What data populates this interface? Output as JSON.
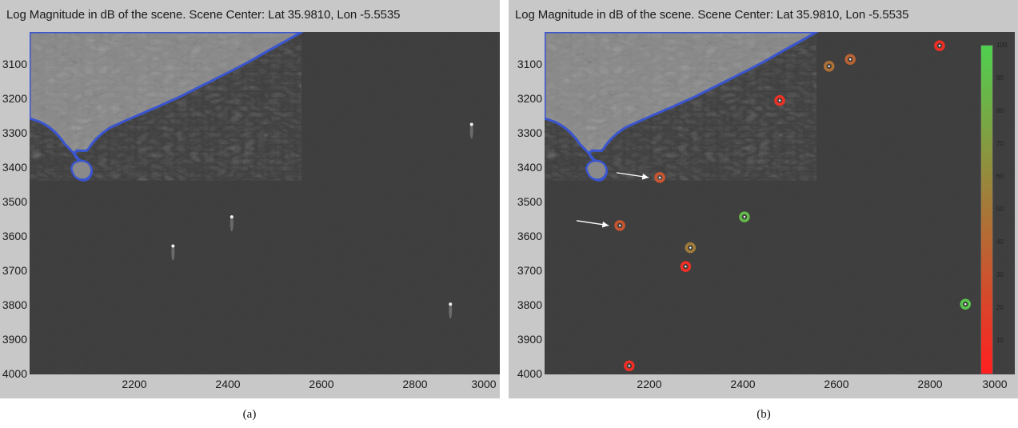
{
  "chart_data": [
    {
      "type": "scatter",
      "title": "Log Magnitude in dB of the scene. Scene Center: Lat 35.9810, Lon -5.5535",
      "caption": "(a)",
      "xlim": [
        2000,
        3000
      ],
      "ylim": [
        3000,
        4000
      ],
      "y_inverted": true,
      "x_ticks": [
        "2200",
        "2400",
        "2600",
        "2800",
        "3000"
      ],
      "y_ticks": [
        "3100",
        "3200",
        "3300",
        "3400",
        "3500",
        "3600",
        "3700",
        "3800",
        "3900",
        "4000"
      ],
      "points": [
        {
          "x": 2940,
          "y": 3270
        },
        {
          "x": 2430,
          "y": 3540
        },
        {
          "x": 2305,
          "y": 3625
        },
        {
          "x": 2895,
          "y": 3795
        }
      ]
    },
    {
      "type": "scatter",
      "title": "Log Magnitude in dB of the scene. Scene Center: Lat 35.9810, Lon -5.5535",
      "caption": "(b)",
      "xlim": [
        2000,
        3000
      ],
      "ylim": [
        3000,
        4000
      ],
      "y_inverted": true,
      "x_ticks": [
        "2200",
        "2400",
        "2600",
        "2800",
        "3000"
      ],
      "y_ticks": [
        "3100",
        "3200",
        "3300",
        "3400",
        "3500",
        "3600",
        "3700",
        "3800",
        "3900",
        "4000"
      ],
      "colorbar": {
        "range": [
          0,
          100
        ],
        "ticks": [
          "10",
          "20",
          "30",
          "40",
          "50",
          "60",
          "70",
          "80",
          "90",
          "100"
        ],
        "colors": [
          "#ff2020",
          "#4fd04f"
        ]
      },
      "points": [
        {
          "x": 2840,
          "y": 3040,
          "value": 8
        },
        {
          "x": 2605,
          "y": 3100,
          "value": 45
        },
        {
          "x": 2650,
          "y": 3080,
          "value": 38
        },
        {
          "x": 2500,
          "y": 3200,
          "value": 10
        },
        {
          "x": 2940,
          "y": 3270,
          "value": 95
        },
        {
          "x": 2245,
          "y": 3425,
          "value": 30
        },
        {
          "x": 2425,
          "y": 3540,
          "value": 88
        },
        {
          "x": 2160,
          "y": 3565,
          "value": 30
        },
        {
          "x": 2310,
          "y": 3630,
          "value": 52
        },
        {
          "x": 2300,
          "y": 3685,
          "value": 8
        },
        {
          "x": 2895,
          "y": 3795,
          "value": 95
        },
        {
          "x": 2180,
          "y": 3975,
          "value": 8
        }
      ],
      "arrows_to": [
        {
          "x": 2245,
          "y": 3425
        },
        {
          "x": 2160,
          "y": 3565
        }
      ]
    }
  ]
}
